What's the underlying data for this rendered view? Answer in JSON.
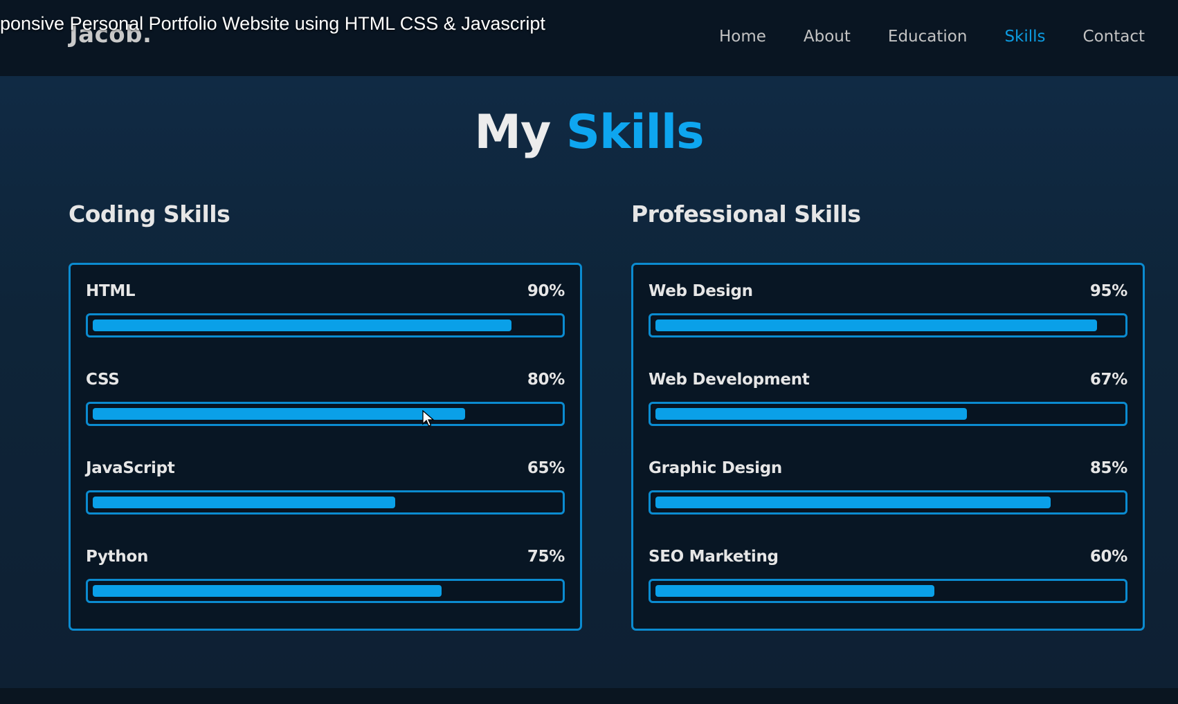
{
  "video_title": "ponsive Personal Portfolio Website using HTML CSS & Javascript",
  "logo": "Jacob.",
  "nav": [
    {
      "label": "Home",
      "active": false
    },
    {
      "label": "About",
      "active": false
    },
    {
      "label": "Education",
      "active": false
    },
    {
      "label": "Skills",
      "active": true
    },
    {
      "label": "Contact",
      "active": false
    }
  ],
  "heading": {
    "part1": "My",
    "part2": "Skills"
  },
  "coding": {
    "title": "Coding Skills",
    "skills": [
      {
        "name": "HTML",
        "percent_label": "90%",
        "value": 90
      },
      {
        "name": "CSS",
        "percent_label": "80%",
        "value": 80
      },
      {
        "name": "JavaScript",
        "percent_label": "65%",
        "value": 65
      },
      {
        "name": "Python",
        "percent_label": "75%",
        "value": 75
      }
    ]
  },
  "professional": {
    "title": "Professional Skills",
    "skills": [
      {
        "name": "Web Design",
        "percent_label": "95%",
        "value": 95
      },
      {
        "name": "Web Development",
        "percent_label": "67%",
        "value": 67
      },
      {
        "name": "Graphic Design",
        "percent_label": "85%",
        "value": 85
      },
      {
        "name": "SEO Marketing",
        "percent_label": "60%",
        "value": 60
      }
    ]
  },
  "colors": {
    "accent": "#0ea6f0",
    "background": "#0b1a28",
    "text": "#ededed"
  }
}
